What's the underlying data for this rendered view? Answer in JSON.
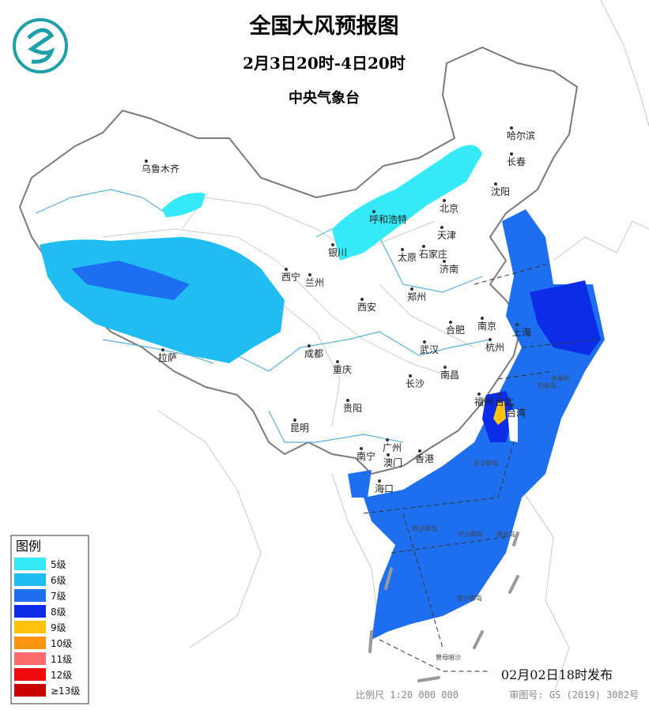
{
  "header": {
    "title": "全国大风预报图",
    "period": "2月3日20时-4日20时",
    "issuer": "中央气象台"
  },
  "legend": {
    "title": "图例",
    "items": [
      {
        "label": "5级",
        "color": "#34eaf6"
      },
      {
        "label": "6级",
        "color": "#20bdf2"
      },
      {
        "label": "7级",
        "color": "#1e6ff0"
      },
      {
        "label": "8级",
        "color": "#0c2de8"
      },
      {
        "label": "9级",
        "color": "#ffc20a"
      },
      {
        "label": "10级",
        "color": "#ff9410"
      },
      {
        "label": "11级",
        "color": "#ff6a6a"
      },
      {
        "label": "12级",
        "color": "#f00c0c"
      },
      {
        "label": "≥13级",
        "color": "#c80000"
      }
    ]
  },
  "cities": [
    "乌鲁木齐",
    "哈尔滨",
    "长春",
    "沈阳",
    "北京",
    "天津",
    "呼和浩特",
    "银川",
    "太原",
    "石家庄",
    "济南",
    "西宁",
    "兰州",
    "西安",
    "郑州",
    "合肥",
    "南京",
    "上海",
    "杭州",
    "武汉",
    "成都",
    "重庆",
    "南昌",
    "长沙",
    "拉萨",
    "贵阳",
    "昆明",
    "福州",
    "台北",
    "台湾",
    "南宁",
    "广州",
    "澳门",
    "香港",
    "海口"
  ],
  "islands": [
    "东沙群岛",
    "西沙群岛",
    "中沙群岛",
    "黄岩岛",
    "南沙群岛",
    "曾母暗沙",
    "赤尾屿",
    "钓鱼岛"
  ],
  "footer": {
    "issued": "02月02日18时发布",
    "scale": "比例尺 1:20 000 000",
    "approval": "审图号: GS (2019) 3082号"
  }
}
